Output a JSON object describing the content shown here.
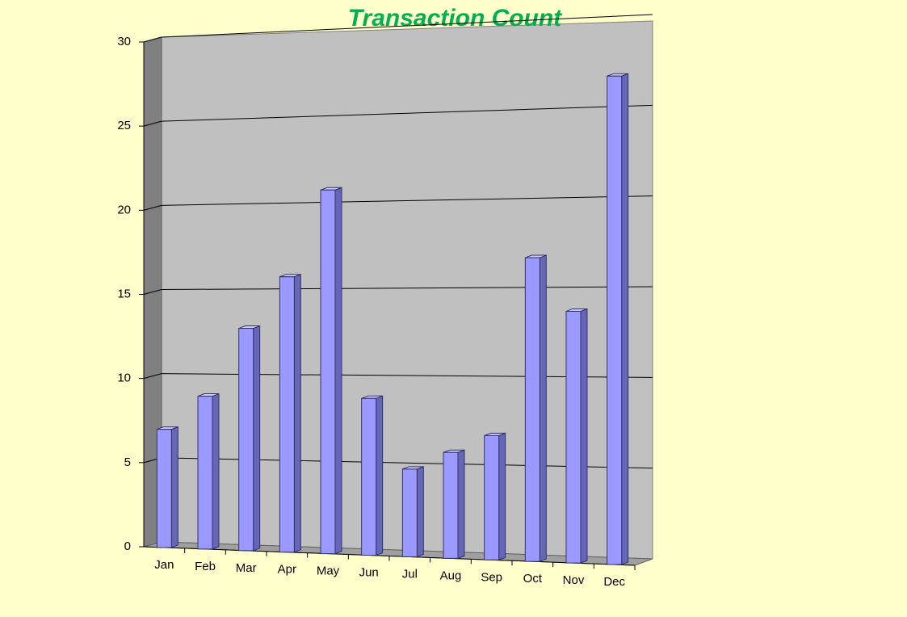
{
  "chart_data": {
    "type": "bar",
    "title": "Transaction Count",
    "categories": [
      "Jan",
      "Feb",
      "Mar",
      "Apr",
      "May",
      "Jun",
      "Jul",
      "Aug",
      "Sep",
      "Oct",
      "Nov",
      "Dec"
    ],
    "values": [
      7,
      9,
      13,
      16,
      21,
      9,
      5,
      6,
      7,
      17,
      14,
      27
    ],
    "color": "#9999ff",
    "ylim": [
      0,
      30
    ],
    "yticks": [
      0,
      5,
      10,
      15,
      20,
      25,
      30
    ],
    "grid": true
  }
}
